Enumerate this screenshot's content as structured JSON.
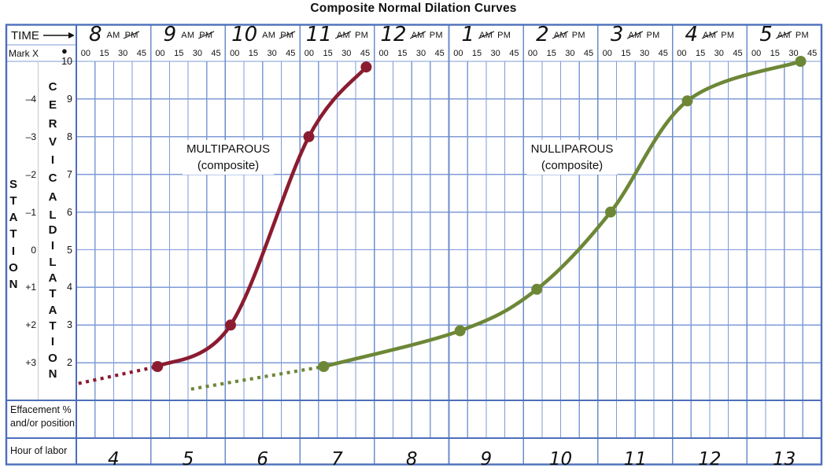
{
  "title": "Composite Normal Dilation Curves",
  "header": {
    "time_label": "TIME",
    "mark_label": "Mark X",
    "mark_symbol": "●",
    "minutes": [
      "00",
      "15",
      "30",
      "45"
    ],
    "hours": [
      {
        "label": "8",
        "am": "AM",
        "pm": "PM",
        "struck": "pm"
      },
      {
        "label": "9",
        "am": "AM",
        "pm": "PM",
        "struck": "pm"
      },
      {
        "label": "10",
        "am": "AM",
        "pm": "PM",
        "struck": "pm"
      },
      {
        "label": "11",
        "am": "AM",
        "pm": "PM",
        "struck": "am"
      },
      {
        "label": "12",
        "am": "AM",
        "pm": "PM",
        "struck": "am"
      },
      {
        "label": "1",
        "am": "AM",
        "pm": "PM",
        "struck": "am"
      },
      {
        "label": "2",
        "am": "AM",
        "pm": "PM",
        "struck": "am"
      },
      {
        "label": "3",
        "am": "AM",
        "pm": "PM",
        "struck": "am"
      },
      {
        "label": "4",
        "am": "AM",
        "pm": "PM",
        "struck": "am"
      },
      {
        "label": "5",
        "am": "AM",
        "pm": "PM",
        "struck": "am"
      }
    ]
  },
  "left_axis": {
    "station_word": "STATION",
    "station_ticks": [
      "–4",
      "–3",
      "–2",
      "–1",
      "0",
      "+1",
      "+2",
      "+3"
    ],
    "cervical_word": "CERVICAL",
    "dilatation_word": "DILATATION",
    "dilation_ticks": [
      "10",
      "9",
      "8",
      "7",
      "6",
      "5",
      "4",
      "3",
      "2"
    ]
  },
  "annotations": [
    {
      "line1": "MULTIPAROUS",
      "line2": "(composite)"
    },
    {
      "line1": "NULLIPAROUS",
      "line2": "(composite)"
    }
  ],
  "footer": {
    "effacement_line1": "Effacement %",
    "effacement_line2": "and/or position",
    "hour_of_labor_label": "Hour of labor",
    "hours_of_labor": [
      "4",
      "5",
      "6",
      "7",
      "8",
      "9",
      "10",
      "11",
      "12",
      "13"
    ]
  },
  "colors": {
    "multiparous": "#8b1c30",
    "nulliparous": "#6d8737",
    "grid_line": "#7f9bd6",
    "hour_line": "#6d8bcb",
    "frame": "#4d6fba",
    "divider_gray": "#c9c9c9",
    "text": "#111111",
    "background": "#ffffff"
  },
  "chart_data": {
    "type": "line",
    "title": "Composite Normal Dilation Curves",
    "x_axis": "Clock time, 15-minute grid, columns 8 AM through 5 PM (t = hours after the 8:00 column)",
    "y_axis": "Cervical dilatation (cm)",
    "y_range": [
      1,
      10
    ],
    "x_columns": [
      "8",
      "9",
      "10",
      "11",
      "12",
      "1",
      "2",
      "3",
      "4",
      "5"
    ],
    "grid": "15-min vertical lines, 1-cm horizontal lines",
    "legend_position": "labels beside curves",
    "series": [
      {
        "name": "MULTIPAROUS (composite)",
        "color": "#8b1c30",
        "style": "solid, dotted leading tail",
        "dotted_lead": [
          {
            "t": 0.03,
            "dilation": 1.45
          },
          {
            "t": 1.09,
            "dilation": 1.9
          }
        ],
        "points": [
          {
            "time": "9:00",
            "t": 1.09,
            "dilation": 1.9
          },
          {
            "time": "10:00",
            "t": 2.07,
            "dilation": 3.0
          },
          {
            "time": "11:00",
            "t": 3.12,
            "dilation": 8.0
          },
          {
            "time": "11:45",
            "t": 3.89,
            "dilation": 9.85
          }
        ]
      },
      {
        "name": "NULLIPAROUS (composite)",
        "color": "#6d8737",
        "style": "solid, dotted leading tail",
        "dotted_lead": [
          {
            "t": 1.54,
            "dilation": 1.3
          },
          {
            "t": 3.32,
            "dilation": 1.9
          }
        ],
        "points": [
          {
            "time": "11:15",
            "t": 3.32,
            "dilation": 1.9
          },
          {
            "time": "1:00",
            "t": 5.15,
            "dilation": 2.85
          },
          {
            "time": "2:00",
            "t": 6.18,
            "dilation": 3.95
          },
          {
            "time": "3:00",
            "t": 7.17,
            "dilation": 6.0
          },
          {
            "time": "4:00",
            "t": 8.2,
            "dilation": 8.95
          },
          {
            "time": "5:40",
            "t": 9.72,
            "dilation": 10.0
          }
        ]
      }
    ],
    "station_scale": [
      "–4",
      "–3",
      "–2",
      "–1",
      "0",
      "+1",
      "+2",
      "+3"
    ],
    "hour_of_labor_row": [
      "4",
      "5",
      "6",
      "7",
      "8",
      "9",
      "10",
      "11",
      "12",
      "13"
    ]
  }
}
